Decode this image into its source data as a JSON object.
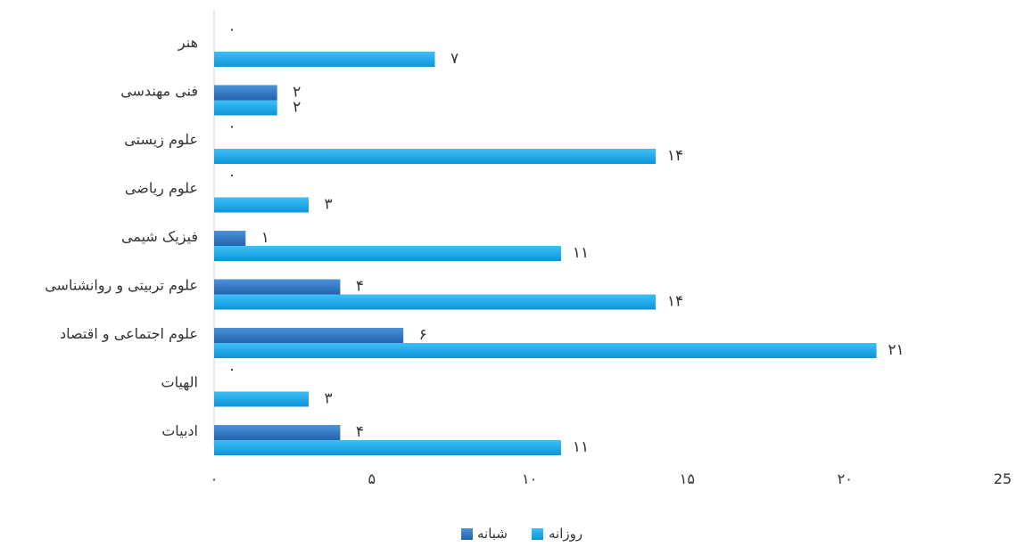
{
  "chart_data": {
    "type": "bar",
    "orientation": "horizontal",
    "categories": [
      "هنر",
      "فنی مهندسی",
      "علوم زیستی",
      "علوم ریاضی",
      "فیزیک شیمی",
      "علوم تربیتی و روانشناسی",
      "علوم اجتماعی و اقتصاد",
      "الهیات",
      "ادبیات"
    ],
    "series": [
      {
        "name": "شبانه",
        "color": "#2e78c8",
        "values": [
          0,
          2,
          0,
          0,
          1,
          4,
          6,
          0,
          4
        ],
        "labels": [
          "۰",
          "۲",
          "۰",
          "۰",
          "۱",
          "۴",
          "۶",
          "۰",
          "۴"
        ]
      },
      {
        "name": "روزانه",
        "color": "#1aa7ec",
        "values": [
          7,
          2,
          14,
          3,
          11,
          14,
          21,
          3,
          11
        ],
        "labels": [
          "۷",
          "۲",
          "۱۴",
          "۳",
          "۱۱",
          "۱۴",
          "۲۱",
          "۳",
          "۱۱"
        ]
      }
    ],
    "xlim": [
      0,
      25
    ],
    "xticks": [
      0,
      5,
      10,
      15,
      20,
      25
    ],
    "xtick_labels": [
      "۰",
      "۵",
      "۱۰",
      "۱۵",
      "۲۰",
      "25"
    ],
    "legend_position": "bottom",
    "grid": false
  }
}
